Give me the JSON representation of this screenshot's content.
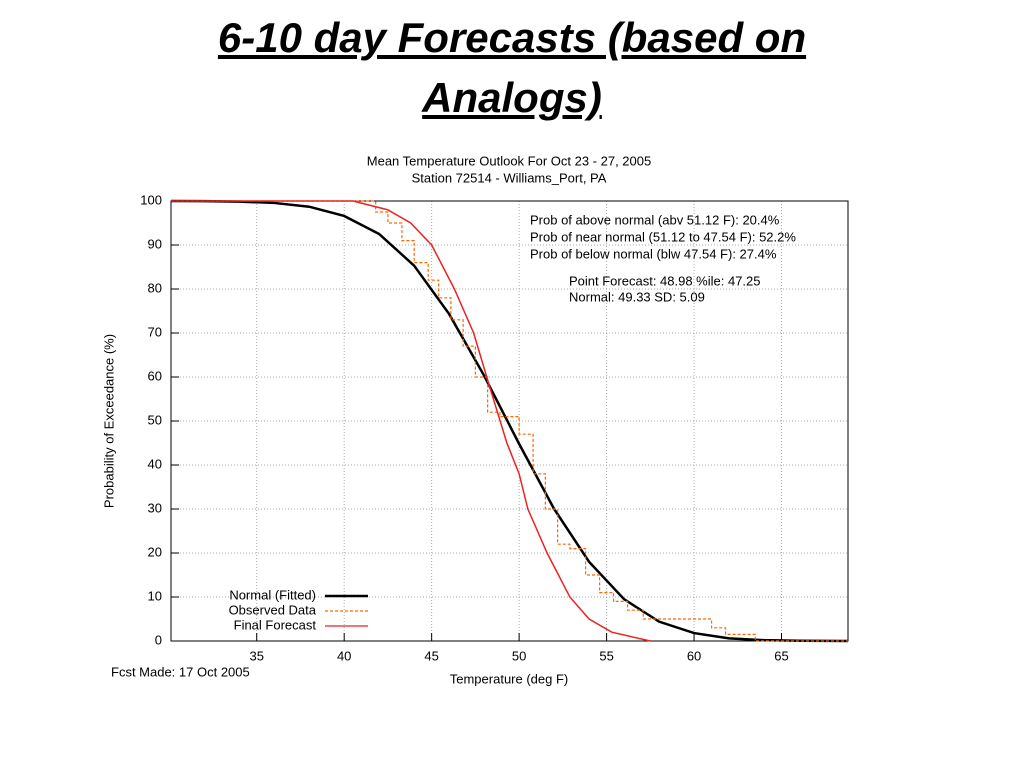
{
  "slide_title": "6-10 day Forecasts (based on Analogs)",
  "chart_data": {
    "type": "line",
    "title": "Mean Temperature Outlook For Oct 23 - 27, 2005",
    "subtitle": "Station 72514 - Williams_Port, PA",
    "x_label": "Temperature (deg F)",
    "y_label": "Probability of Exceedance (%)",
    "footnote": "Fcst Made: 17 Oct 2005",
    "annotations": [
      "Prob of above normal (abv 51.12 F): 20.4%",
      "Prob of near normal (51.12 to 47.54 F): 52.2%",
      "Prob of below normal (blw 47.54 F): 27.4%",
      "Point Forecast: 48.98   %ile: 47.25",
      "Normal: 49.33   SD: 5.09"
    ],
    "xlim": [
      30.1,
      68.8
    ],
    "ylim": [
      0,
      100
    ],
    "xticks": [
      35,
      40,
      45,
      50,
      55,
      60,
      65
    ],
    "yticks": [
      0,
      10,
      20,
      30,
      40,
      50,
      60,
      70,
      80,
      90,
      100
    ],
    "grid": true,
    "legend": "lower left",
    "series": [
      {
        "name": "Normal (Fitted)",
        "color": "#000000",
        "style": "line",
        "x": [
          30.1,
          32,
          34,
          36,
          38,
          40,
          42,
          44,
          46,
          48,
          50,
          52,
          54,
          56,
          58,
          60,
          62,
          64,
          66,
          68.8
        ],
        "values": [
          100,
          99.97,
          99.87,
          99.56,
          98.7,
          96.6,
          92.5,
          85.3,
          74.3,
          60.3,
          44.8,
          30,
          18,
          9.5,
          4.4,
          1.8,
          0.6,
          0.2,
          0.05,
          0.01
        ]
      },
      {
        "name": "Observed Data",
        "color": "#ff6600",
        "style": "step",
        "x": [
          30.1,
          41.8,
          42.5,
          43.3,
          44.0,
          44.8,
          45.4,
          46.1,
          46.8,
          47.5,
          48.2,
          48.9,
          50.0,
          50.8,
          51.5,
          52.2,
          52.9,
          53.8,
          54.6,
          55.4,
          56.2,
          57.1,
          58.6,
          61.0,
          61.8,
          63.5
        ],
        "values": [
          100,
          97.5,
          95,
          91,
          86,
          82,
          78,
          73,
          67,
          60,
          52,
          51,
          47,
          38,
          30,
          22,
          21,
          15,
          11,
          9,
          7,
          5,
          5,
          3,
          1.5,
          0
        ]
      },
      {
        "name": "Final Forecast",
        "color": "#ee2222",
        "style": "line",
        "x": [
          30.1,
          40.5,
          42.5,
          43.8,
          45,
          46.3,
          47.4,
          48.3,
          49.3,
          50.0,
          50.5,
          51.6,
          52.9,
          54,
          55.3,
          57.5
        ],
        "values": [
          100,
          100,
          98,
          95,
          90,
          80,
          70,
          58,
          45,
          38,
          30,
          20,
          10,
          5,
          2,
          0
        ]
      }
    ]
  }
}
